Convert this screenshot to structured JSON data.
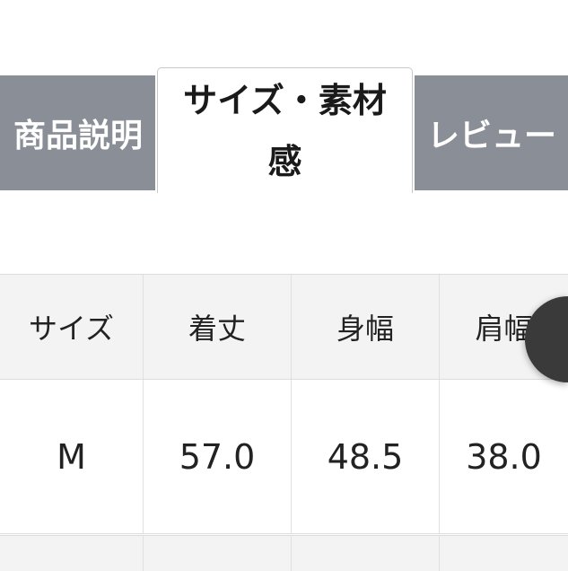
{
  "tabs": [
    {
      "label": "商品説明",
      "active": false
    },
    {
      "label_line1": "サイズ・素材",
      "label_line2": "感",
      "active": true
    },
    {
      "label": "レビュー",
      "active": false
    }
  ],
  "size_table": {
    "headers": [
      "サイズ",
      "着丈",
      "身幅",
      "肩幅"
    ],
    "rows": [
      [
        "M",
        "57.0",
        "48.5",
        "38.0"
      ]
    ]
  },
  "colors": {
    "inactive_tab": "#8a8e96",
    "header_bg": "#f3f3f3",
    "fab": "#3a3a3a"
  }
}
